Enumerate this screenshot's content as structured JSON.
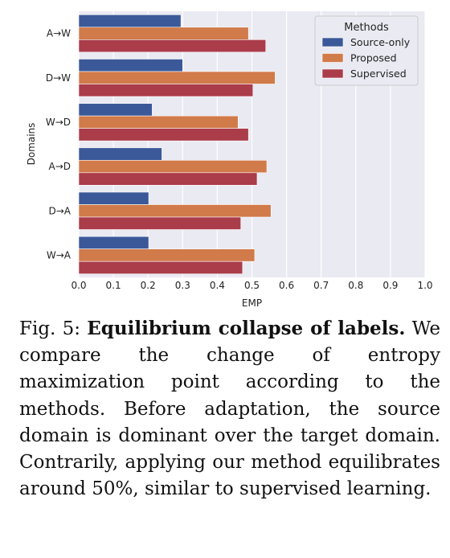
{
  "chart_data": {
    "type": "bar",
    "orientation": "horizontal",
    "categories": [
      "A→W",
      "D→W",
      "W→D",
      "A→D",
      "D→A",
      "W→A"
    ],
    "series": [
      {
        "name": "Source-only",
        "values": [
          0.295,
          0.3,
          0.212,
          0.24,
          0.202,
          0.202
        ]
      },
      {
        "name": "Proposed",
        "values": [
          0.49,
          0.567,
          0.46,
          0.543,
          0.555,
          0.508
        ]
      },
      {
        "name": "Supervised",
        "values": [
          0.54,
          0.503,
          0.49,
          0.515,
          0.468,
          0.473
        ]
      }
    ],
    "xlabel": "EMP",
    "ylabel": "Domains",
    "xlim": [
      0.0,
      1.0
    ],
    "xticks": [
      "0.0",
      "0.1",
      "0.2",
      "0.3",
      "0.4",
      "0.5",
      "0.6",
      "0.7",
      "0.8",
      "0.9",
      "1.0"
    ],
    "legend_title": "Methods",
    "legend_position": "top-right",
    "grid": "vertical",
    "colors": {
      "Source-only": "#3b5999",
      "Proposed": "#d17a4a",
      "Supervised": "#ab3c4a",
      "plot_bg": "#eaeaf2",
      "grid": "#ffffff"
    }
  },
  "caption": {
    "fig_label": "Fig. 5: ",
    "bold_title": "Equilibrium collapse of labels.",
    "text": " We compare the change of entropy maximization point according to the methods. Before adaptation, the source domain is dominant over the target domain. Contrarily, applying our method equilibrates around 50%, similar to supervised learning."
  }
}
